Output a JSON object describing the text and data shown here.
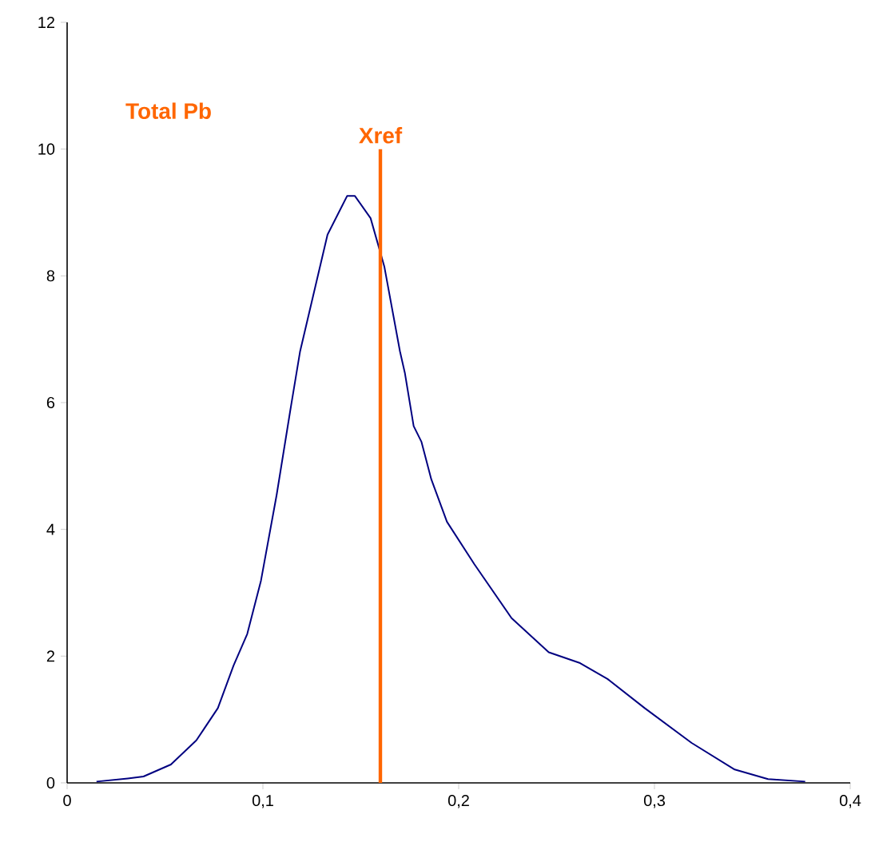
{
  "chart_data": {
    "type": "line",
    "title": "Total Pb",
    "xlim": [
      0,
      0.4
    ],
    "xticks": [
      0,
      {
        "value": 0.1,
        "label": "0,1"
      },
      {
        "value": 0.2,
        "label": "0,2"
      },
      {
        "value": 0.3,
        "label": "0,3"
      },
      {
        "value": 0.4,
        "label": "0,4"
      }
    ],
    "ylim": [
      0,
      12
    ],
    "yticks": [
      0,
      2,
      4,
      6,
      8,
      10,
      12
    ],
    "grid": false,
    "legend": false,
    "marker": "none",
    "line_style": "solid",
    "series": [
      {
        "color": "#000080",
        "x": [
          0.015,
          0.031,
          0.039,
          0.053,
          0.066,
          0.077,
          0.085,
          0.092,
          0.099,
          0.107,
          0.114,
          0.119,
          0.126,
          0.133,
          0.143,
          0.147,
          0.155,
          0.162,
          0.17,
          0.1725,
          0.177,
          0.181,
          0.186,
          0.194,
          0.208,
          0.227,
          0.246,
          0.262,
          0.276,
          0.295,
          0.319,
          0.341,
          0.358,
          0.377
        ],
        "values": [
          0.02,
          0.07,
          0.1,
          0.29,
          0.67,
          1.18,
          1.85,
          2.35,
          3.19,
          4.54,
          5.88,
          6.81,
          7.73,
          8.65,
          9.26,
          9.26,
          8.91,
          8.15,
          6.81,
          6.47,
          5.63,
          5.38,
          4.79,
          4.12,
          3.45,
          2.6,
          2.06,
          1.89,
          1.64,
          1.18,
          0.63,
          0.21,
          0.06,
          0.02
        ]
      },
      {
        "name": "Xref",
        "color": "#ff6600",
        "x": [
          0.16,
          0.16
        ],
        "values": [
          0,
          10
        ]
      }
    ]
  }
}
